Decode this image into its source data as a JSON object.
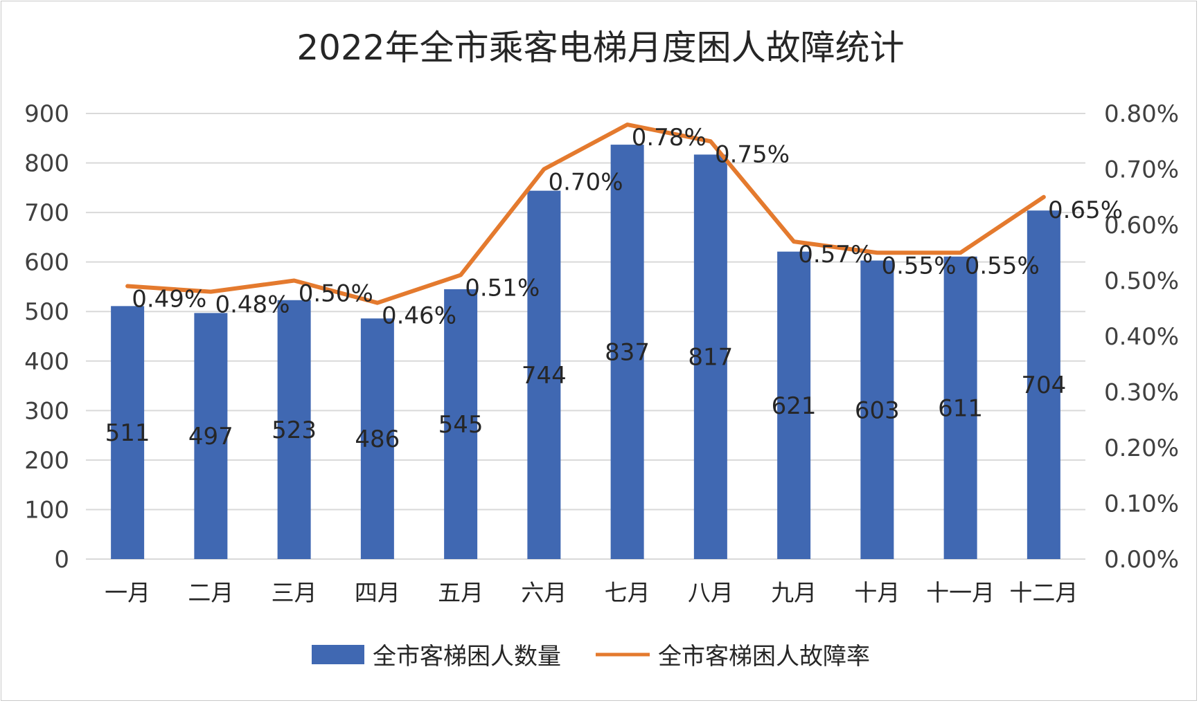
{
  "chart_data": {
    "type": "bar",
    "title": "2022年全市乘客电梯月度困人故障统计",
    "categories": [
      "一月",
      "二月",
      "三月",
      "四月",
      "五月",
      "六月",
      "七月",
      "八月",
      "九月",
      "十月",
      "十一月",
      "十二月"
    ],
    "series": [
      {
        "name": "全市客梯困人数量",
        "type": "bar",
        "axis": "left",
        "color": "#4068b2",
        "values": [
          511,
          497,
          523,
          486,
          545,
          744,
          837,
          817,
          621,
          603,
          611,
          704
        ],
        "labels": [
          "511",
          "497",
          "523",
          "486",
          "545",
          "744",
          "837",
          "817",
          "621",
          "603",
          "611",
          "704"
        ]
      },
      {
        "name": "全市客梯困人故障率",
        "type": "line",
        "axis": "right",
        "color": "#e47a2e",
        "values": [
          0.49,
          0.48,
          0.5,
          0.46,
          0.51,
          0.7,
          0.78,
          0.75,
          0.57,
          0.55,
          0.55,
          0.65
        ],
        "labels": [
          "0.49%",
          "0.48%",
          "0.50%",
          "0.46%",
          "0.51%",
          "0.70%",
          "0.78%",
          "0.75%",
          "0.57%",
          "0.55%",
          "0.55%",
          "0.65%"
        ]
      }
    ],
    "ylim": [
      0,
      900
    ],
    "y_ticks": [
      "0",
      "100",
      "200",
      "300",
      "400",
      "500",
      "600",
      "700",
      "800",
      "900"
    ],
    "y2lim": [
      0,
      0.8
    ],
    "y2_ticks": [
      "0.00%",
      "0.10%",
      "0.20%",
      "0.30%",
      "0.40%",
      "0.50%",
      "0.60%",
      "0.70%",
      "0.80%"
    ],
    "grid": true,
    "legend_position": "bottom"
  }
}
